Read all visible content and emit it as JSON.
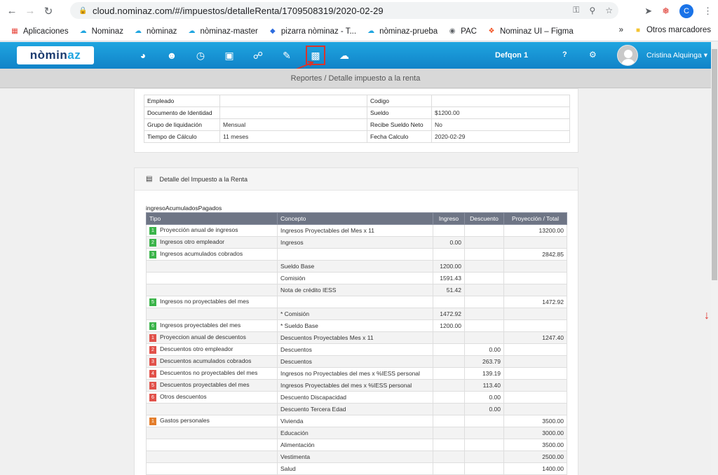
{
  "browser": {
    "url": "cloud.nominaz.com/#/impuestos/detalleRenta/1709508319/2020-02-29",
    "profile_initial": "C"
  },
  "bookmarks": [
    {
      "label": "Aplicaciones",
      "icon": "apps-grid-icon"
    },
    {
      "label": "Nominaz",
      "icon": "cloud-icon"
    },
    {
      "label": "nòminaz",
      "icon": "cloud-icon"
    },
    {
      "label": "nòminaz-master",
      "icon": "cloud-icon"
    },
    {
      "label": "pizarra nòminaz - T...",
      "icon": "diamond-icon"
    },
    {
      "label": "nòminaz-prueba",
      "icon": "cloud-icon"
    },
    {
      "label": "PAC",
      "icon": "globe-icon"
    },
    {
      "label": "Nominaz UI – Figma",
      "icon": "figma-icon"
    }
  ],
  "bookmarks_more": "»",
  "bookmarks_other": "Otros marcadores",
  "app": {
    "logo_a": "nòmin",
    "logo_b": "az",
    "company": "Defqon 1",
    "help": "?",
    "user": "Cristina Alquinga ▾"
  },
  "breadcrumb": "Reportes / Detalle impuesto a la renta",
  "employee_info": {
    "rows": [
      {
        "l1": "Empleado",
        "v1": "",
        "l2": "Codigo",
        "v2": ""
      },
      {
        "l1": "Documento de Identidad",
        "v1": "",
        "l2": "Sueldo",
        "v2": "$1200.00"
      },
      {
        "l1": "Grupo de liquidación",
        "v1": "Mensual",
        "l2": "Recibe Sueldo Neto",
        "v2": "No"
      },
      {
        "l1": "Tiempo de Cálculo",
        "v1": "11 meses",
        "l2": "Fecha Calculo",
        "v2": "2020-02-29"
      }
    ]
  },
  "detail": {
    "title": "Detalle del Impuesto a la Renta",
    "caption": "ingresoAcumuladosPagados",
    "headers": [
      "Tipo",
      "Concepto",
      "Ingreso",
      "Descuento",
      "Proyección / Total"
    ],
    "rows": [
      {
        "badge": "1",
        "color": "g",
        "tipo": "Proyección anual de ingresos",
        "concepto": "Ingresos Proyectables del Mes x 11",
        "ingreso": "",
        "descuento": "",
        "total": "13200.00"
      },
      {
        "badge": "2",
        "color": "g",
        "tipo": "Ingresos otro empleador",
        "concepto": "Ingresos",
        "ingreso": "0.00",
        "descuento": "",
        "total": ""
      },
      {
        "badge": "3",
        "color": "g",
        "tipo": "Ingresos acumulados cobrados",
        "concepto": "",
        "ingreso": "",
        "descuento": "",
        "total": "2842.85"
      },
      {
        "badge": "",
        "color": "",
        "tipo": "",
        "concepto": "Sueldo Base",
        "ingreso": "1200.00",
        "descuento": "",
        "total": ""
      },
      {
        "badge": "",
        "color": "",
        "tipo": "",
        "concepto": "Comisión",
        "ingreso": "1591.43",
        "descuento": "",
        "total": ""
      },
      {
        "badge": "",
        "color": "",
        "tipo": "",
        "concepto": "Nota de crédito IESS",
        "ingreso": "51.42",
        "descuento": "",
        "total": ""
      },
      {
        "badge": "5",
        "color": "g",
        "tipo": "Ingresos no proyectables del mes",
        "concepto": "",
        "ingreso": "",
        "descuento": "",
        "total": "1472.92"
      },
      {
        "badge": "",
        "color": "",
        "tipo": "",
        "concepto": "* Comisión",
        "ingreso": "1472.92",
        "descuento": "",
        "total": ""
      },
      {
        "badge": "6",
        "color": "g",
        "tipo": "Ingresos proyectables del mes",
        "concepto": "* Sueldo Base",
        "ingreso": "1200.00",
        "descuento": "",
        "total": ""
      },
      {
        "badge": "1",
        "color": "r",
        "tipo": "Proyeccion anual de descuentos",
        "concepto": "Descuentos Proyectables Mes x 11",
        "ingreso": "",
        "descuento": "",
        "total": "1247.40"
      },
      {
        "badge": "2",
        "color": "r",
        "tipo": "Descuentos otro empleador",
        "concepto": "Descuentos",
        "ingreso": "",
        "descuento": "0.00",
        "total": ""
      },
      {
        "badge": "3",
        "color": "r",
        "tipo": "Descuentos acumulados cobrados",
        "concepto": "Descuentos",
        "ingreso": "",
        "descuento": "263.79",
        "total": ""
      },
      {
        "badge": "4",
        "color": "r",
        "tipo": "Descuentos no proyectables del mes",
        "concepto": "Ingresos no Proyectables del mes x %IESS personal",
        "ingreso": "",
        "descuento": "139.19",
        "total": ""
      },
      {
        "badge": "5",
        "color": "r",
        "tipo": "Descuentos proyectables del mes",
        "concepto": "Ingresos Proyectables del mes x %IESS personal",
        "ingreso": "",
        "descuento": "113.40",
        "total": ""
      },
      {
        "badge": "6",
        "color": "r",
        "tipo": "Otros descuentos",
        "concepto": "Descuento Discapacidad",
        "ingreso": "",
        "descuento": "0.00",
        "total": ""
      },
      {
        "badge": "",
        "color": "",
        "tipo": "",
        "concepto": "Descuento Tercera Edad",
        "ingreso": "",
        "descuento": "0.00",
        "total": ""
      },
      {
        "badge": "1",
        "color": "o",
        "tipo": "Gastos personales",
        "concepto": "Vivienda",
        "ingreso": "",
        "descuento": "",
        "total": "3500.00"
      },
      {
        "badge": "",
        "color": "",
        "tipo": "",
        "concepto": "Educación",
        "ingreso": "",
        "descuento": "",
        "total": "3000.00"
      },
      {
        "badge": "",
        "color": "",
        "tipo": "",
        "concepto": "Alimentación",
        "ingreso": "",
        "descuento": "",
        "total": "3500.00"
      },
      {
        "badge": "",
        "color": "",
        "tipo": "",
        "concepto": "Vestimenta",
        "ingreso": "",
        "descuento": "",
        "total": "2500.00"
      },
      {
        "badge": "",
        "color": "",
        "tipo": "",
        "concepto": "Salud",
        "ingreso": "",
        "descuento": "",
        "total": "1400.00"
      }
    ]
  }
}
